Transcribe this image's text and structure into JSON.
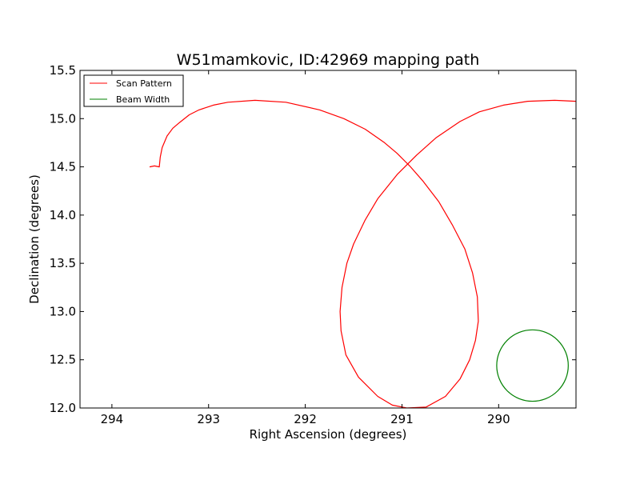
{
  "chart_data": {
    "type": "line",
    "title": "W51mamkovic, ID:42969 mapping path",
    "xlabel": "Right Ascension (degrees)",
    "ylabel": "Declination (degrees)",
    "xlim": [
      294.33,
      289.2
    ],
    "ylim": [
      12.0,
      15.5
    ],
    "x_inverted": true,
    "xticks": [
      294,
      293,
      292,
      291,
      290
    ],
    "xtick_labels": [
      "294",
      "293",
      "292",
      "291",
      "290"
    ],
    "yticks": [
      12.0,
      12.5,
      13.0,
      13.5,
      14.0,
      14.5,
      15.0,
      15.5
    ],
    "ytick_labels": [
      "12.0",
      "12.5",
      "13.0",
      "13.5",
      "14.0",
      "14.5",
      "15.0",
      "15.5"
    ],
    "grid": false,
    "legend_position": "upper-left",
    "series": [
      {
        "name": "Scan Pattern",
        "color": "#ff0000",
        "x": [
          293.61,
          293.56,
          293.51,
          293.5,
          293.48,
          293.43,
          293.37,
          293.3,
          293.2,
          293.1,
          292.95,
          292.8,
          292.52,
          292.2,
          291.85,
          291.6,
          291.38,
          291.18,
          291.05,
          290.92,
          290.78,
          290.62,
          290.48,
          290.35,
          290.27,
          290.22,
          290.21,
          290.24,
          290.3,
          290.4,
          290.55,
          290.75,
          290.95,
          291.1,
          291.25,
          291.45,
          291.58,
          291.63,
          291.64,
          291.62,
          291.57,
          291.5,
          291.38,
          291.25,
          291.05,
          290.85,
          290.65,
          290.4,
          290.2,
          289.95,
          289.7,
          289.42,
          289.2
        ],
        "y": [
          14.5,
          14.51,
          14.5,
          14.6,
          14.7,
          14.82,
          14.9,
          14.96,
          15.04,
          15.09,
          15.14,
          15.17,
          15.19,
          15.17,
          15.09,
          15.0,
          14.89,
          14.75,
          14.64,
          14.51,
          14.35,
          14.14,
          13.9,
          13.65,
          13.4,
          13.15,
          12.9,
          12.7,
          12.5,
          12.3,
          12.12,
          12.01,
          12.0,
          12.03,
          12.12,
          12.32,
          12.55,
          12.8,
          13.0,
          13.25,
          13.5,
          13.7,
          13.95,
          14.17,
          14.42,
          14.62,
          14.8,
          14.97,
          15.07,
          15.14,
          15.18,
          15.19,
          15.18
        ]
      },
      {
        "name": "Beam Width",
        "color": "#008000",
        "shape": "circle",
        "center": [
          289.65,
          12.44
        ],
        "radius_deg": 0.37
      }
    ]
  }
}
